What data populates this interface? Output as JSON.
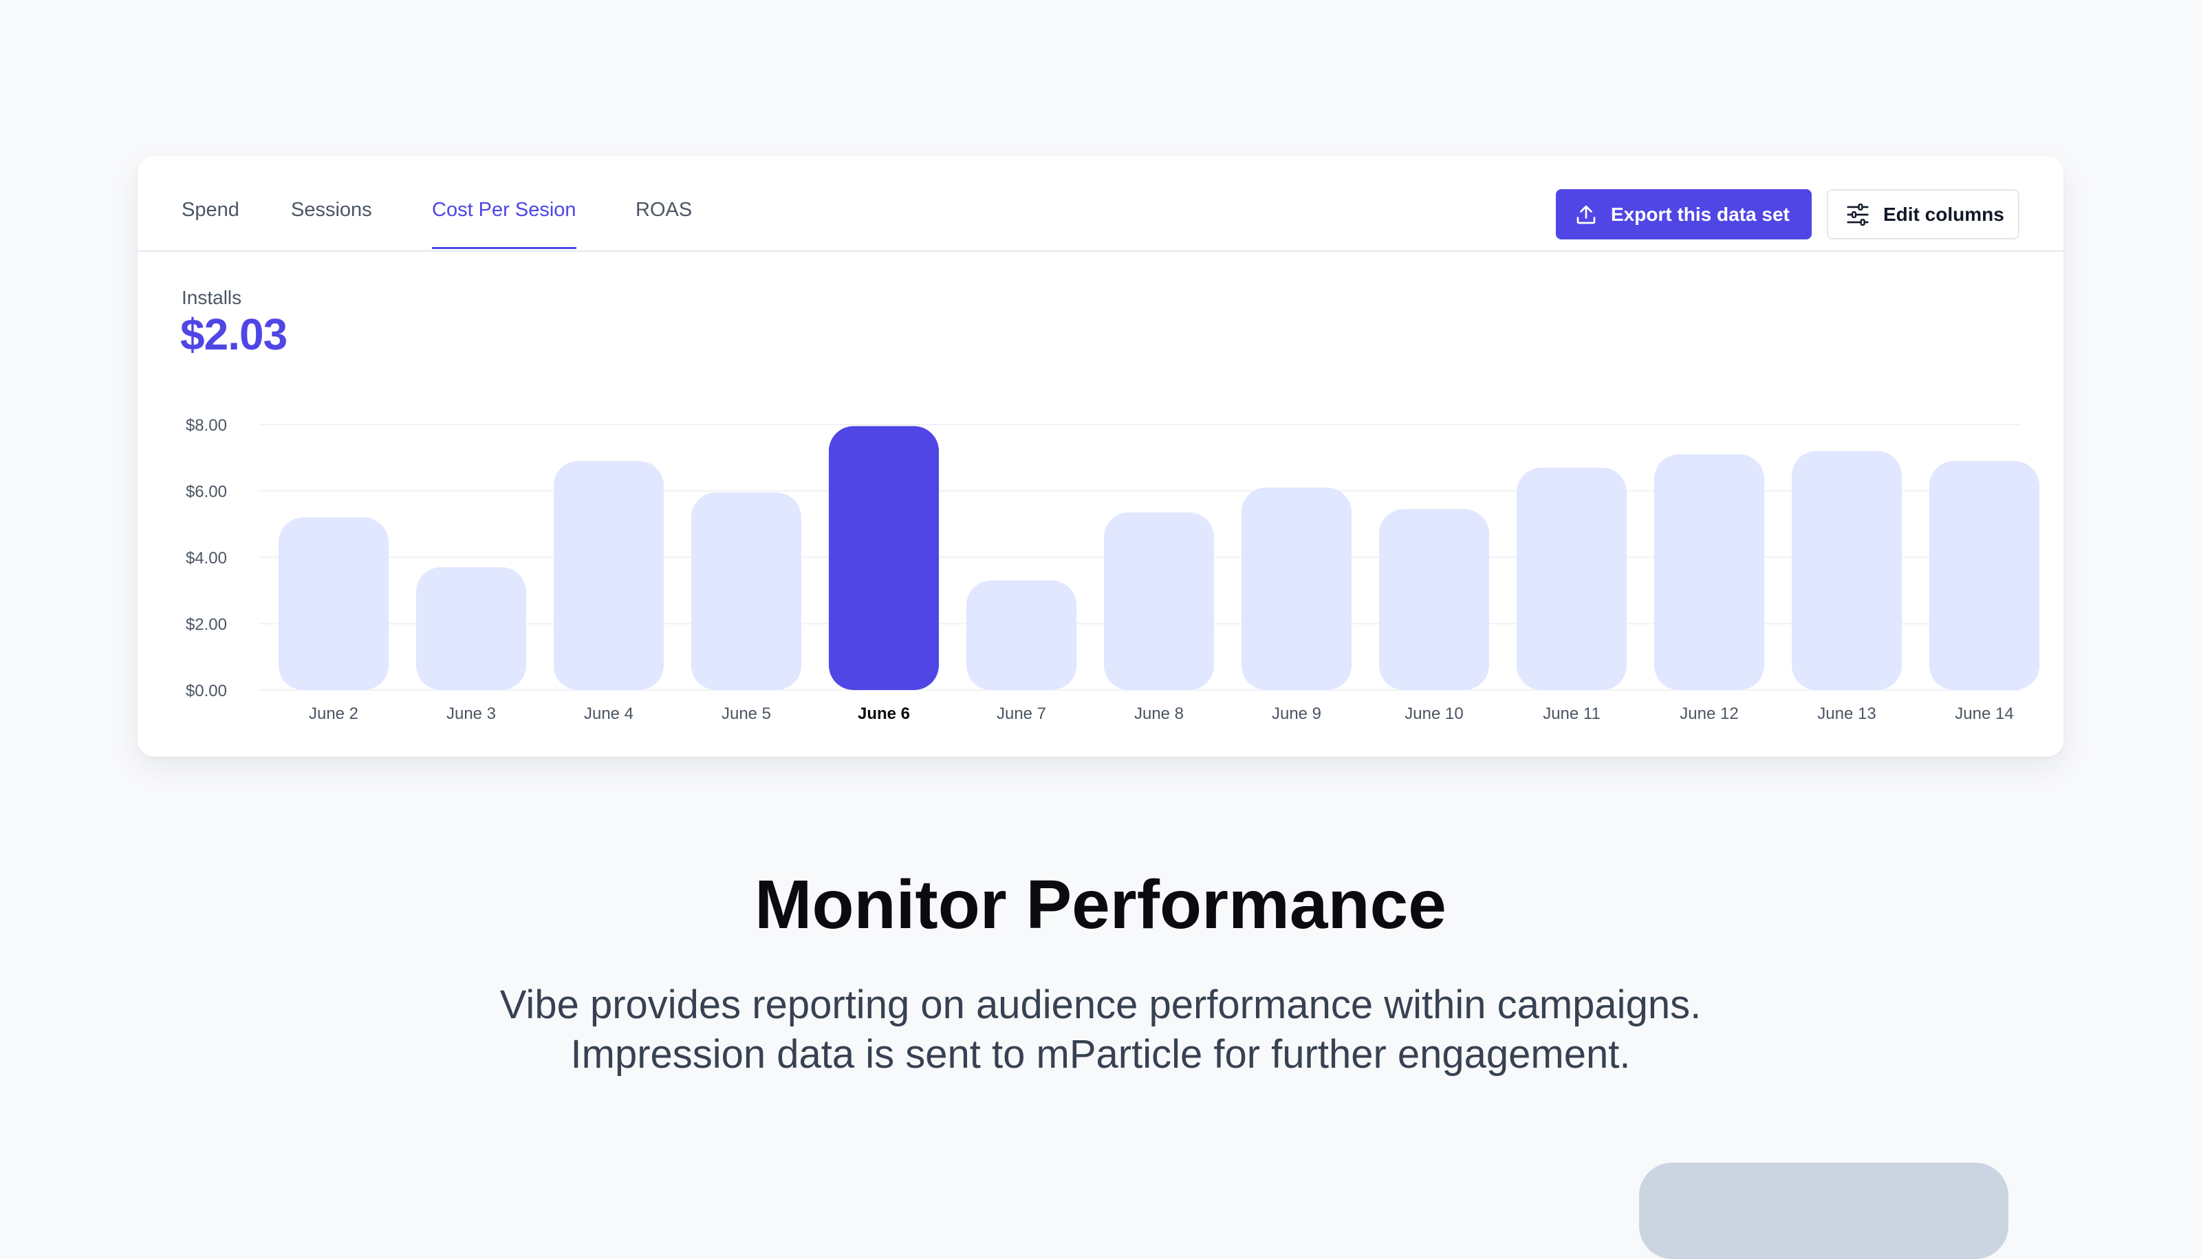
{
  "tabs": [
    {
      "label": "Spend",
      "active": false
    },
    {
      "label": "Sessions",
      "active": false
    },
    {
      "label": "Cost Per Sesion",
      "active": true
    },
    {
      "label": "ROAS",
      "active": false
    }
  ],
  "actions": {
    "export_label": "Export this data set",
    "export_icon": "upload-icon",
    "edit_label": "Edit columns",
    "edit_icon": "sliders-icon"
  },
  "metric": {
    "label": "Installs",
    "value": "$2.03"
  },
  "colors": {
    "accent": "#4f46e5",
    "bar": "#e0e7ff",
    "bar_active": "#5046e5"
  },
  "chart_data": {
    "type": "bar",
    "categories": [
      "June 2",
      "June 3",
      "June 4",
      "June 5",
      "June 6",
      "June 7",
      "June 8",
      "June 9",
      "June 10",
      "June 11",
      "June 12",
      "June 13",
      "June 14"
    ],
    "values": [
      5.2,
      3.7,
      6.9,
      5.95,
      7.95,
      3.3,
      5.35,
      6.1,
      5.45,
      6.7,
      7.1,
      7.2,
      6.9
    ],
    "highlighted": "June 6",
    "y_ticks": [
      "$0.00",
      "$2.00",
      "$4.00",
      "$6.00",
      "$8.00"
    ],
    "ylim": [
      0,
      8
    ],
    "grid": true
  },
  "hero": {
    "title": "Monitor Performance",
    "description_lines": [
      "Vibe provides reporting on audience performance within campaigns.",
      "Impression data is sent to mParticle for further engagement."
    ]
  }
}
